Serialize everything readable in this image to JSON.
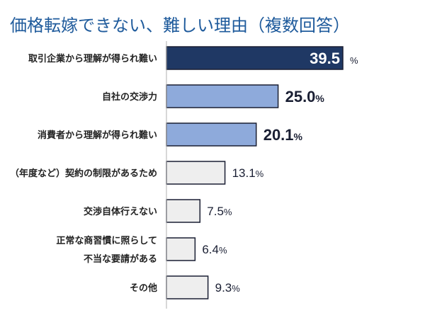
{
  "chart_data": {
    "type": "bar",
    "orientation": "horizontal",
    "title": "価格転嫁できない、難しい理由（複数回答）",
    "unit": "%",
    "categories": [
      [
        "取引企業から理解が得られ難い"
      ],
      [
        "自社の交渉力"
      ],
      [
        "消費者から理解が得られ難い"
      ],
      [
        "（年度など）契約の制限があるため"
      ],
      [
        "交渉自体行えない"
      ],
      [
        "正常な商習慣に照らして",
        "不当な要請がある"
      ],
      [
        "その他"
      ]
    ],
    "values": [
      39.5,
      25.0,
      20.1,
      13.1,
      7.5,
      6.4,
      9.3
    ],
    "value_labels": [
      "39.5",
      "25.0",
      "20.1",
      "13.1",
      "7.5",
      "6.4",
      "9.3"
    ],
    "bar_colors": [
      "#1f3864",
      "#8eaadb",
      "#8eaadb",
      "#eeeeee",
      "#eeeeee",
      "#eeeeee",
      "#eeeeee"
    ],
    "xlim": [
      0,
      40
    ],
    "grid": false,
    "legend": "none"
  }
}
